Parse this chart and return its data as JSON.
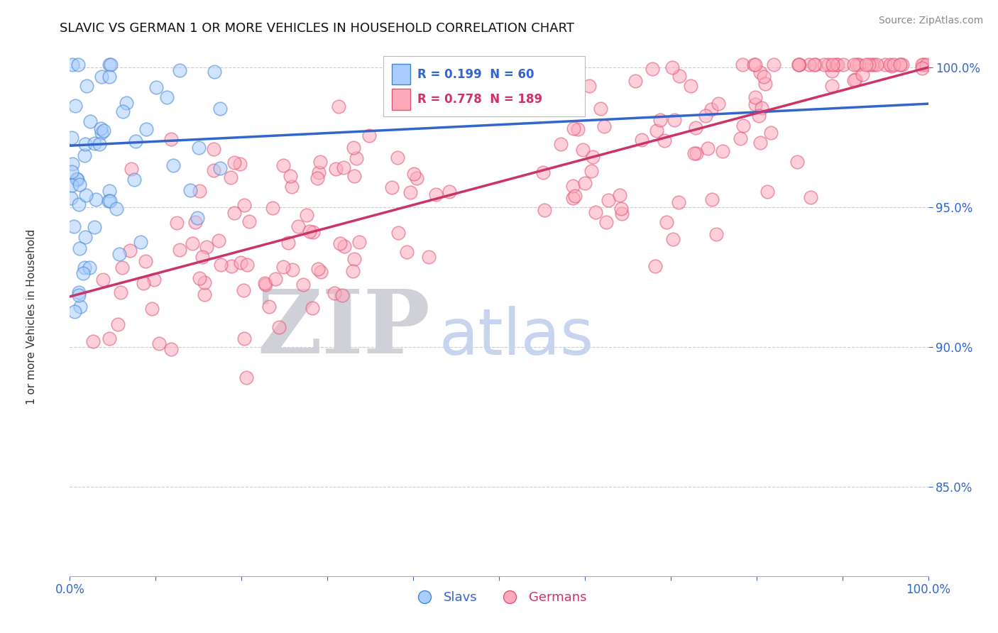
{
  "title": "SLAVIC VS GERMAN 1 OR MORE VEHICLES IN HOUSEHOLD CORRELATION CHART",
  "source": "Source: ZipAtlas.com",
  "ylabel": "1 or more Vehicles in Household",
  "xlim": [
    0.0,
    1.0
  ],
  "ylim": [
    0.818,
    1.006
  ],
  "yticks": [
    0.85,
    0.9,
    0.95,
    1.0
  ],
  "ytick_labels": [
    "85.0%",
    "90.0%",
    "95.0%",
    "100.0%"
  ],
  "xticks": [
    0.0,
    0.1,
    0.2,
    0.3,
    0.4,
    0.5,
    0.6,
    0.7,
    0.8,
    0.9,
    1.0
  ],
  "xtick_labels": [
    "0.0%",
    "",
    "",
    "",
    "",
    "",
    "",
    "",
    "",
    "",
    "100.0%"
  ],
  "slavs_color": "#aaccff",
  "slavs_edge_color": "#4488cc",
  "germans_color": "#ffaabb",
  "germans_edge_color": "#dd5577",
  "slavs_label": "Slavs",
  "germans_label": "Germans",
  "R_slavs": 0.199,
  "N_slavs": 60,
  "R_germans": 0.778,
  "N_germans": 189,
  "line_color_slavs": "#3366cc",
  "line_color_germans": "#cc3366",
  "watermark_ZIP": "ZIP",
  "watermark_atlas": "atlas",
  "watermark_ZIP_color": "#d0d0d8",
  "watermark_atlas_color": "#c8d4ee",
  "background_color": "#ffffff",
  "legend_R_color_slavs": "#3366cc",
  "legend_R_color_germans": "#cc3366",
  "legend_N_color": "#000000",
  "title_fontsize": 13,
  "source_fontsize": 10
}
